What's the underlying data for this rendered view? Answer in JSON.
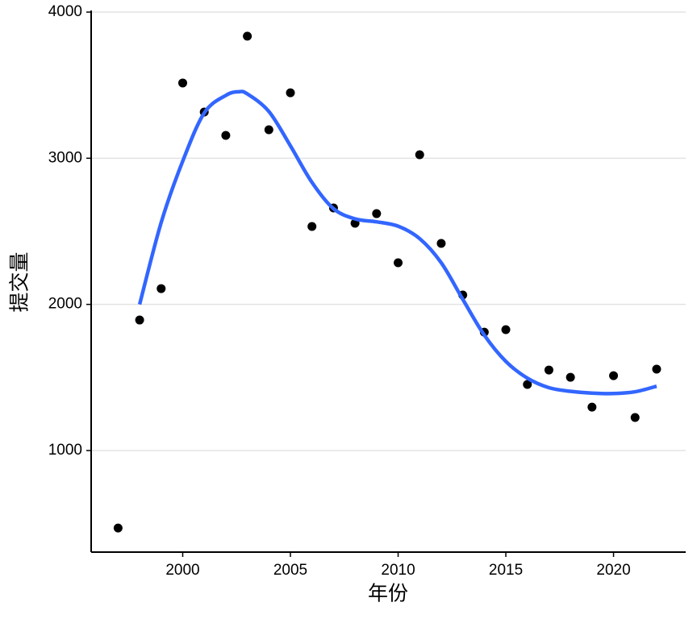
{
  "chart_data": {
    "type": "scatter",
    "x_label": "年份",
    "y_label": "提交量",
    "xlim": [
      1995.75,
      2023.35
    ],
    "ylim": [
      305,
      4000
    ],
    "xticks": [
      2000,
      2005,
      2010,
      2015,
      2020
    ],
    "yticks": [
      1000,
      2000,
      3000,
      4000
    ],
    "grid": true,
    "series": [
      {
        "type": "scatter",
        "color": "#000000",
        "x": [
          1997,
          1998,
          1999,
          2000,
          2001,
          2002,
          2003,
          2004,
          2005,
          2006,
          2007,
          2008,
          2009,
          2010,
          2011,
          2012,
          2013,
          2014,
          2015,
          2016,
          2017,
          2018,
          2019,
          2020,
          2021,
          2022
        ],
        "values": [
          470,
          1893,
          2108,
          3515,
          3316,
          3156,
          3835,
          3195,
          3448,
          2533,
          2660,
          2555,
          2621,
          2285,
          3024,
          2417,
          2064,
          1810,
          1827,
          1452,
          1551,
          1501,
          1297,
          1512,
          1226,
          1557
        ]
      },
      {
        "type": "line",
        "color": "#3366ff",
        "x": [
          1998,
          1999,
          2000,
          2001,
          2002,
          2002.6,
          2003,
          2004,
          2005,
          2006,
          2007,
          2008,
          2009,
          2010,
          2011,
          2012,
          2013,
          2014,
          2015,
          2016,
          2017,
          2018,
          2019,
          2020,
          2021,
          2022
        ],
        "values": [
          2000,
          2560,
          2980,
          3310,
          3430,
          3455,
          3440,
          3320,
          3085,
          2835,
          2655,
          2585,
          2565,
          2535,
          2450,
          2285,
          2035,
          1790,
          1610,
          1495,
          1430,
          1405,
          1393,
          1390,
          1402,
          1440
        ]
      }
    ]
  }
}
